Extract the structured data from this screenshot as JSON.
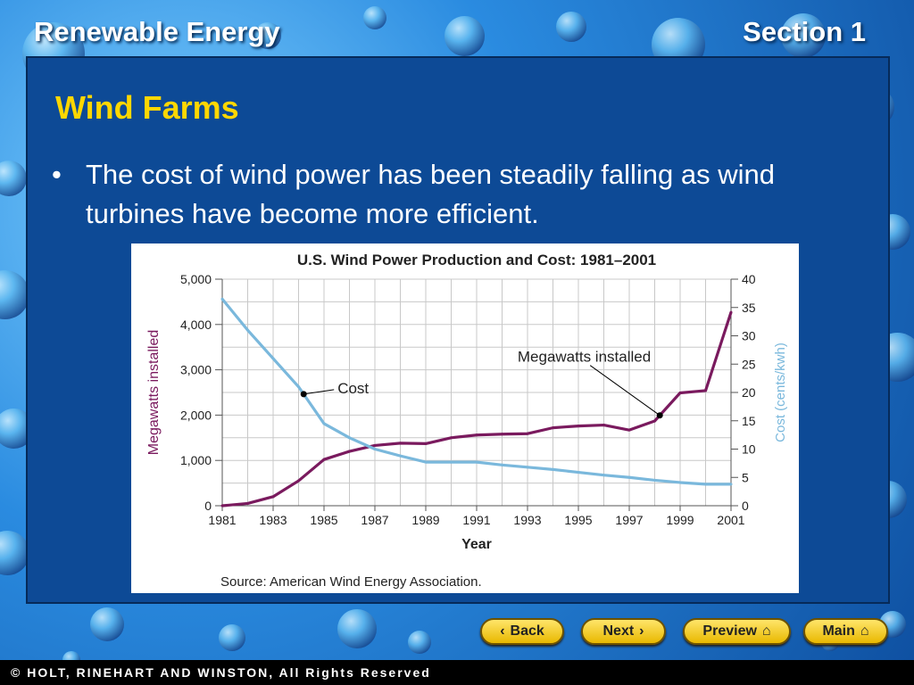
{
  "header": {
    "left_title": "Renewable Energy",
    "right_title": "Section 1"
  },
  "slide": {
    "title": "Wind Farms",
    "bullet_marker": "•",
    "bullet_text": "The cost of wind power has been steadily falling as wind turbines have become more efficient."
  },
  "chart_data": {
    "type": "line",
    "title": "U.S. Wind Power Production and Cost: 1981–2001",
    "xlabel": "Year",
    "ylabel_left": "Megawatts installed",
    "ylabel_right": "Cost (cents/kwh)",
    "x_ticks": [
      "1981",
      "1983",
      "1985",
      "1987",
      "1989",
      "1991",
      "1993",
      "1995",
      "1997",
      "1999",
      "2001"
    ],
    "y_left_ticks": [
      "0",
      "1,000",
      "2,000",
      "3,000",
      "4,000",
      "5,000"
    ],
    "y_right_ticks": [
      "0",
      "5",
      "10",
      "15",
      "20",
      "25",
      "30",
      "35",
      "40"
    ],
    "y_left_lim": [
      0,
      5000
    ],
    "y_right_lim": [
      0,
      40
    ],
    "x_lim": [
      1981,
      2001
    ],
    "grid": true,
    "series": [
      {
        "name": "Megawatts installed",
        "axis": "left",
        "color": "#7a1a5e",
        "x": [
          1981,
          1982,
          1983,
          1984,
          1985,
          1986,
          1987,
          1988,
          1989,
          1990,
          1991,
          1992,
          1993,
          1994,
          1995,
          1996,
          1997,
          1998,
          1999,
          2000,
          2001
        ],
        "values": [
          0,
          50,
          200,
          550,
          1020,
          1200,
          1330,
          1380,
          1370,
          1500,
          1560,
          1580,
          1590,
          1720,
          1760,
          1780,
          1670,
          1870,
          2490,
          2540,
          4270
        ]
      },
      {
        "name": "Cost",
        "axis": "right",
        "color": "#7ab8dc",
        "x": [
          1981,
          1982,
          1983,
          1984,
          1985,
          1986,
          1987,
          1988,
          1989,
          1990,
          1991,
          1992,
          1993,
          1994,
          1995,
          1996,
          1997,
          1998,
          1999,
          2000,
          2001
        ],
        "values": [
          36.5,
          31,
          26,
          21,
          14.5,
          12,
          10,
          8.8,
          7.7,
          7.7,
          7.7,
          7.2,
          6.8,
          6.4,
          5.9,
          5.4,
          5,
          4.5,
          4.1,
          3.8,
          3.8
        ]
      }
    ],
    "annotations": [
      {
        "text": "Cost",
        "series": "Cost",
        "x": 1984.2
      },
      {
        "text": "Megawatts installed",
        "series": "Megawatts installed",
        "x": 1998.2
      }
    ],
    "source": "Source: American Wind Energy Association."
  },
  "nav": {
    "back_label": "Back",
    "back_icon": "‹",
    "next_label": "Next",
    "next_icon": "›",
    "preview_label": "Preview",
    "preview_icon": "⌂",
    "main_label": "Main",
    "main_icon": "⌂"
  },
  "footer": {
    "copyright": "© HOLT, RINEHART AND WINSTON, All Rights Reserved"
  }
}
